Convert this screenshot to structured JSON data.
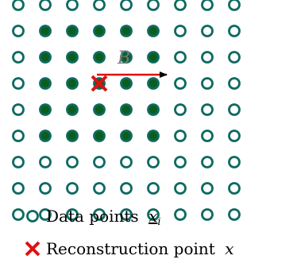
{
  "colors": {
    "point_stroke": "#0e6a62",
    "point_fill_active": "#0a5e1a",
    "point_fill_data": "#ffffff",
    "arrow_red": "#e01010",
    "arrow_head": "#000000",
    "cross_red": "#e01010",
    "label_b": "#7a7a7a"
  },
  "grid": {
    "rows": 9,
    "cols": 9,
    "active_rows": [
      1,
      2,
      3,
      4,
      5
    ],
    "active_cols": [
      1,
      2,
      3,
      4,
      5
    ],
    "reconstruction_point": {
      "row": 3,
      "col": 3
    }
  },
  "arrow": {
    "label": "B"
  },
  "legend": {
    "data_points": {
      "text": "Data points",
      "symbol_var": "x",
      "subscript": "i"
    },
    "reconstruction_point": {
      "text": "Reconstruction point",
      "symbol_var": "x"
    }
  }
}
